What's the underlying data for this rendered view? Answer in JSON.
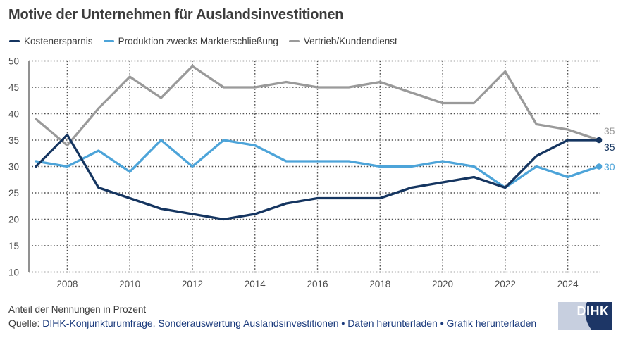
{
  "title": "Motive der Unternehmen für Auslandsinvestitionen",
  "chart_data": {
    "type": "line",
    "x": [
      2007,
      2008,
      2009,
      2010,
      2011,
      2012,
      2013,
      2014,
      2015,
      2016,
      2017,
      2018,
      2019,
      2020,
      2021,
      2022,
      2023,
      2024,
      2025
    ],
    "x_gridline_years": [
      2008,
      2010,
      2012,
      2014,
      2016,
      2018,
      2020,
      2022,
      2024
    ],
    "x_tick_labels": [
      "2008",
      "2010",
      "2012",
      "2014",
      "2016",
      "2018",
      "2020",
      "2022",
      "2024"
    ],
    "y_ticks": [
      10,
      15,
      20,
      25,
      30,
      35,
      40,
      45,
      50
    ],
    "ylim": [
      10,
      50
    ],
    "grid": "dotted",
    "legend_position": "top",
    "series": [
      {
        "name": "Kostenersparnis",
        "color": "#153560",
        "values": [
          30,
          36,
          26,
          24,
          22,
          21,
          20,
          21,
          23,
          24,
          24,
          24,
          26,
          27,
          28,
          26,
          32,
          35,
          35
        ],
        "end_label": "35",
        "end_dot": true,
        "end_label_dy": 15
      },
      {
        "name": "Produktion zwecks Markterschließung",
        "color": "#4da4d9",
        "values": [
          31,
          30,
          33,
          29,
          35,
          30,
          35,
          34,
          31,
          31,
          31,
          30,
          30,
          31,
          30,
          26,
          30,
          28,
          30
        ],
        "end_label": "30",
        "end_dot": true,
        "end_label_dy": 5.5
      },
      {
        "name": "Vertrieb/Kundendienst",
        "color": "#9a9a9a",
        "values": [
          39,
          34,
          41,
          47,
          43,
          49,
          45,
          45,
          46,
          45,
          45,
          46,
          44,
          42,
          42,
          48,
          38,
          37,
          35
        ],
        "end_label": "35",
        "end_dot": false,
        "end_label_dy": -8
      }
    ],
    "colors": {
      "gridline": "#4f4f4f",
      "axis_line": "#919191",
      "tick_label": "#4b4b4b"
    }
  },
  "footer": {
    "note": "Anteil der Nennungen in Prozent",
    "source_prefix": "Quelle:",
    "source_link": "DIHK-Konjunkturumfrage, Sonderauswertung Auslandsinvestitionen",
    "separator": "•",
    "download_data_label": "Daten herunterladen",
    "download_graphic_label": "Grafik herunterladen",
    "link_color": "#1a3a7c"
  },
  "logo": {
    "text": "DIHK",
    "navy_color": "#1d3666",
    "light_color": "#c7cfdf"
  }
}
